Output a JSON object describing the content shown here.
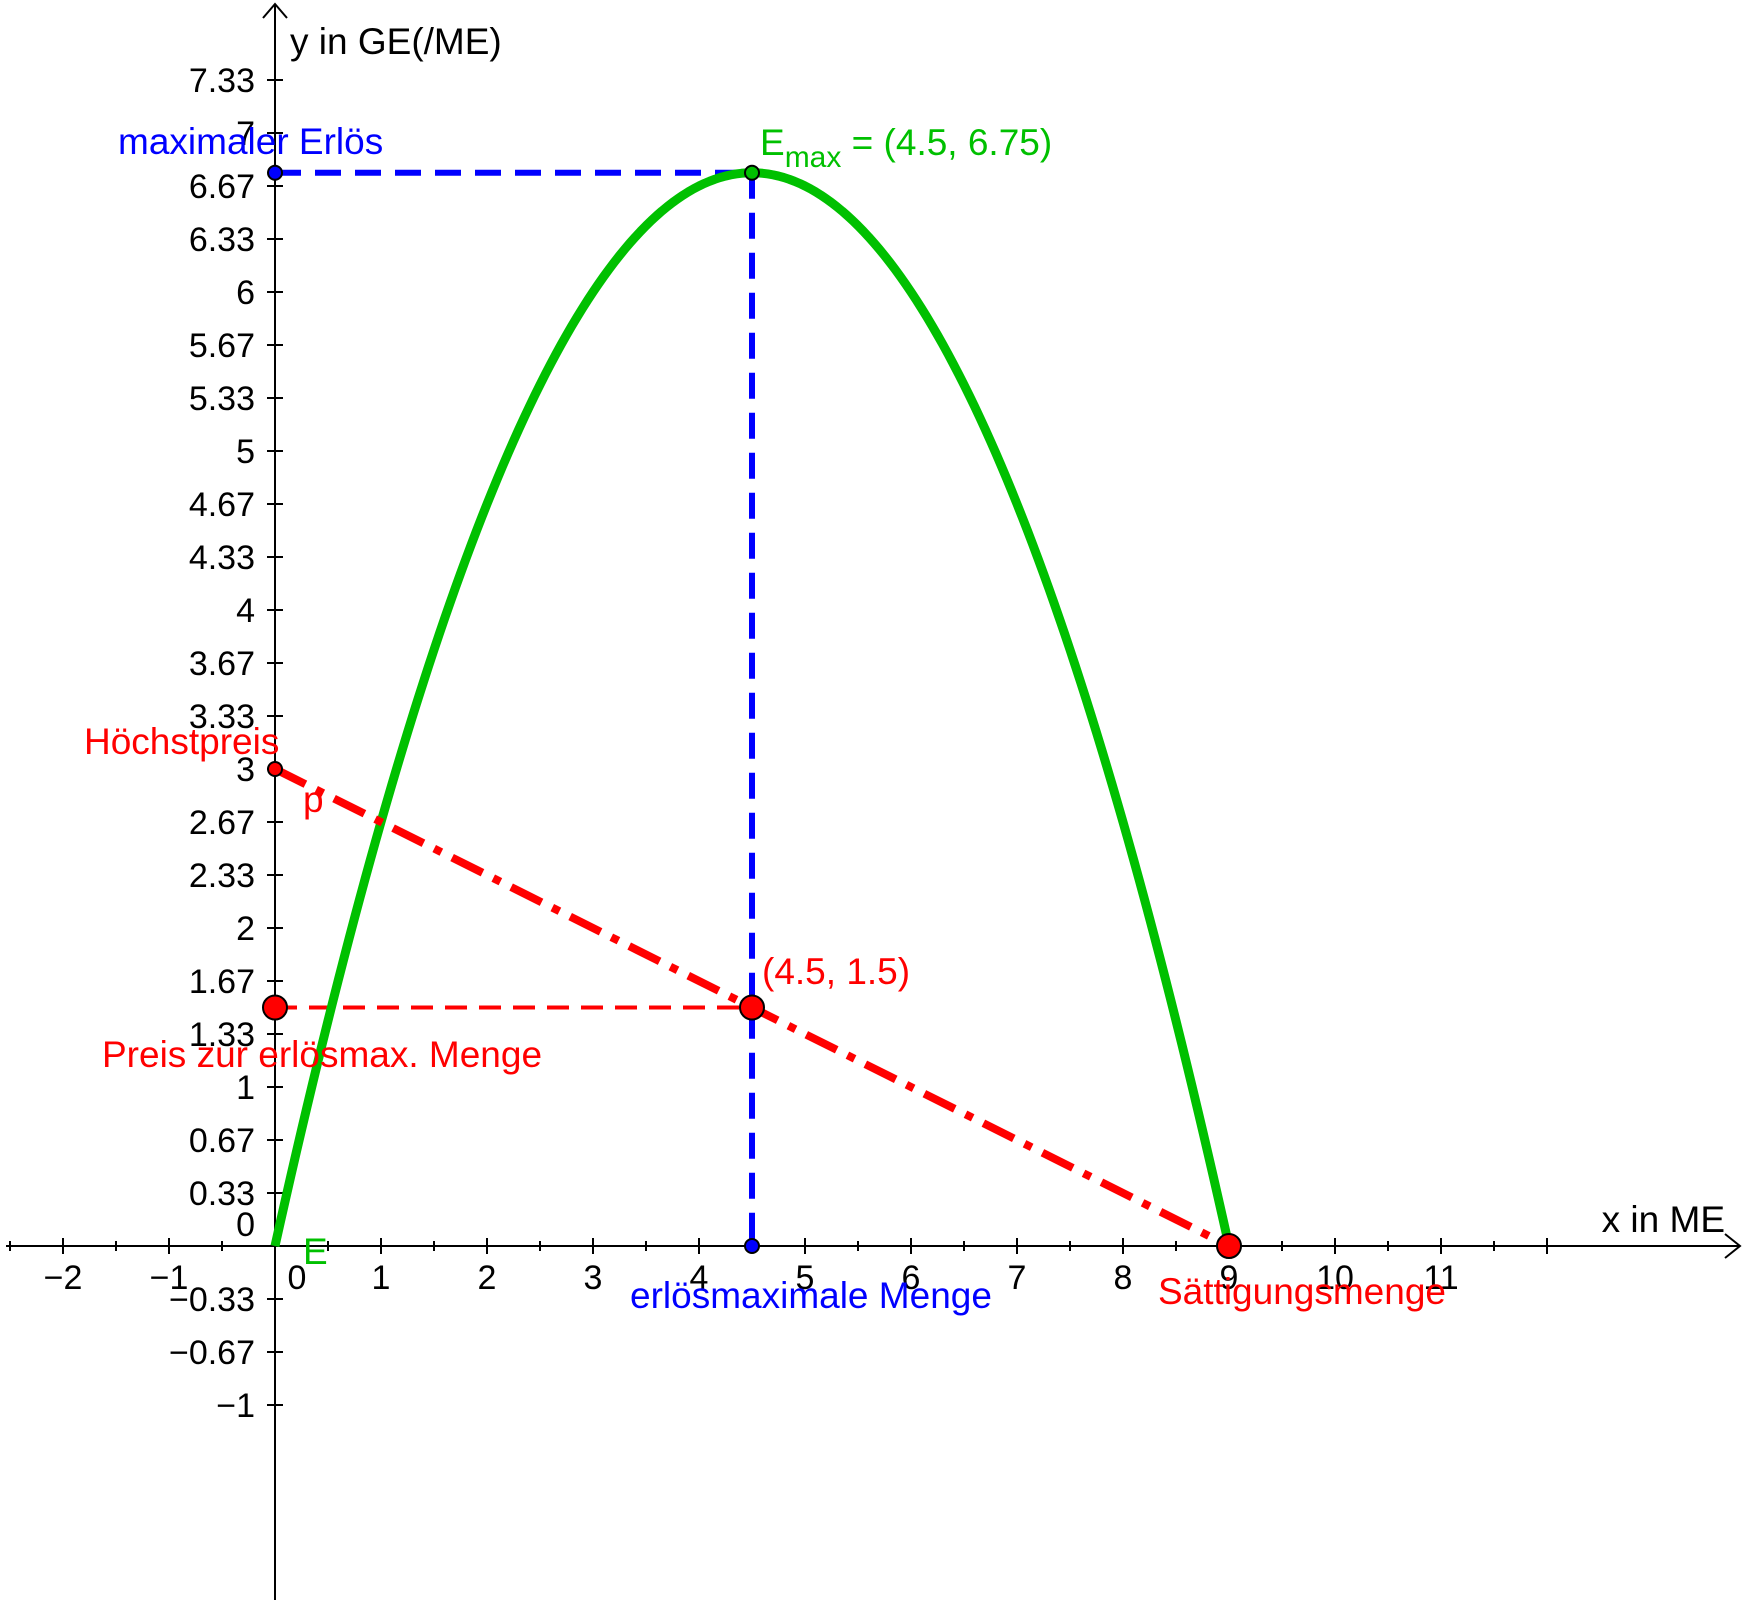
{
  "chart_data": {
    "type": "line",
    "title": "",
    "xlabel": "x in ME",
    "ylabel": "y in GE(/ME)",
    "xlim": [
      -2.5,
      12.4
    ],
    "ylim": [
      -1.25,
      7.9
    ],
    "x_ticks": [
      {
        "value": -2,
        "label": "−2"
      },
      {
        "value": -1,
        "label": "−1"
      },
      {
        "value": 0,
        "label": "0"
      },
      {
        "value": 1,
        "label": "1"
      },
      {
        "value": 2,
        "label": "2"
      },
      {
        "value": 3,
        "label": "3"
      },
      {
        "value": 4,
        "label": "4"
      },
      {
        "value": 5,
        "label": "5"
      },
      {
        "value": 6,
        "label": "6"
      },
      {
        "value": 7,
        "label": "7"
      },
      {
        "value": 8,
        "label": "8"
      },
      {
        "value": 9,
        "label": "9"
      },
      {
        "value": 10,
        "label": "10"
      },
      {
        "value": 11,
        "label": "11"
      }
    ],
    "y_ticks": [
      {
        "value": -1,
        "label": "−1"
      },
      {
        "value": -0.6667,
        "label": "−0.67"
      },
      {
        "value": -0.3333,
        "label": "−0.33"
      },
      {
        "value": 0,
        "label": "0"
      },
      {
        "value": 0.3333,
        "label": "0.33"
      },
      {
        "value": 0.6667,
        "label": "0.67"
      },
      {
        "value": 1,
        "label": "1"
      },
      {
        "value": 1.3333,
        "label": "1.33"
      },
      {
        "value": 1.6667,
        "label": "1.67"
      },
      {
        "value": 2,
        "label": "2"
      },
      {
        "value": 2.3333,
        "label": "2.33"
      },
      {
        "value": 2.6667,
        "label": "2.67"
      },
      {
        "value": 3,
        "label": "3"
      },
      {
        "value": 3.3333,
        "label": "3.33"
      },
      {
        "value": 3.6667,
        "label": "3.67"
      },
      {
        "value": 4,
        "label": "4"
      },
      {
        "value": 4.3333,
        "label": "4.33"
      },
      {
        "value": 4.6667,
        "label": "4.67"
      },
      {
        "value": 5,
        "label": "5"
      },
      {
        "value": 5.3333,
        "label": "5.33"
      },
      {
        "value": 5.6667,
        "label": "5.67"
      },
      {
        "value": 6,
        "label": "6"
      },
      {
        "value": 6.3333,
        "label": "6.33"
      },
      {
        "value": 6.6667,
        "label": "6.67"
      },
      {
        "value": 7,
        "label": "7"
      },
      {
        "value": 7.3333,
        "label": "7.33"
      }
    ],
    "minor_x_step": 0.5,
    "grid": false,
    "series": [
      {
        "label": "E",
        "type": "curve",
        "function": "E(x) = -1/3 x^2 + 3x",
        "domain": [
          0,
          9
        ],
        "color": "#00c000"
      },
      {
        "label": "p",
        "type": "line",
        "function": "p(x) = -1/3 x + 3",
        "domain": [
          0,
          9
        ],
        "color": "#ff0000",
        "style": "dash-dot"
      }
    ],
    "guides": [
      {
        "from": [
          0,
          6.75
        ],
        "to": [
          4.5,
          6.75
        ],
        "color": "#0000ff",
        "style": "dashed"
      },
      {
        "from": [
          4.5,
          6.75
        ],
        "to": [
          4.5,
          0
        ],
        "color": "#0000ff",
        "style": "dashed"
      },
      {
        "from": [
          0,
          1.5
        ],
        "to": [
          4.5,
          1.5
        ],
        "color": "#ff0000",
        "style": "dashed"
      }
    ],
    "points": [
      {
        "x": 4.5,
        "y": 6.75,
        "color": "#00c000",
        "size": "small"
      },
      {
        "x": 0,
        "y": 6.75,
        "color": "#0000ff",
        "size": "small"
      },
      {
        "x": 4.5,
        "y": 0,
        "color": "#0000ff",
        "size": "small"
      },
      {
        "x": 0,
        "y": 3,
        "color": "#ff0000",
        "size": "small"
      },
      {
        "x": 4.5,
        "y": 1.5,
        "color": "#ff0000",
        "size": "large"
      },
      {
        "x": 0,
        "y": 1.5,
        "color": "#ff0000",
        "size": "large"
      },
      {
        "x": 9,
        "y": 0,
        "color": "#ff0000",
        "size": "large"
      }
    ],
    "annotations": {
      "emax_base": "E",
      "emax_sub": "max",
      "emax_coords": " = (4.5, 6.75)",
      "maximaler_erloes": "maximaler Erlös",
      "hoechstpreis": "Höchstpreis",
      "p_label": "p",
      "point_label": "(4.5, 1.5)",
      "preis": "Preis zur erlösmax. Menge",
      "e_label": "E",
      "erloesmaximale_menge": "erlösmaximale Menge",
      "saettigungsmenge": "Sättigungsmenge"
    },
    "colors": {
      "curve": "#00c000",
      "price": "#ff0000",
      "guide": "#0000ff",
      "axis": "#000000"
    }
  }
}
